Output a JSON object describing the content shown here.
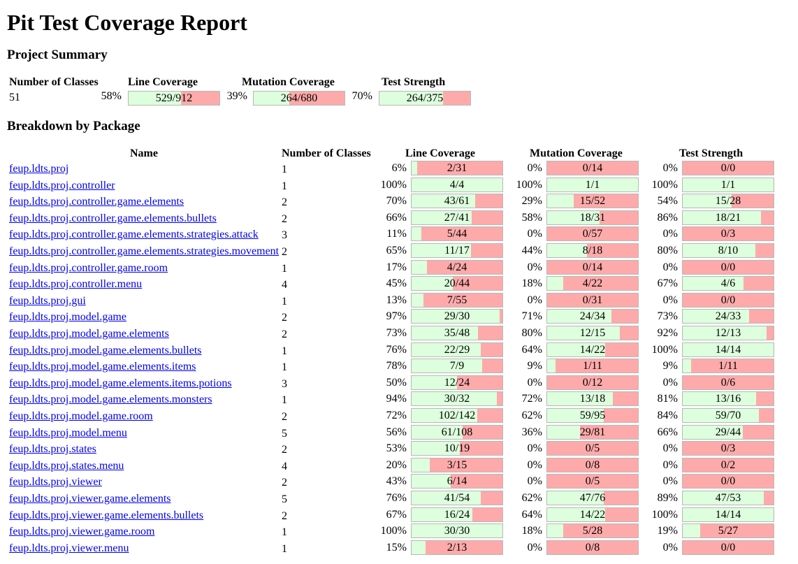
{
  "title": "Pit Test Coverage Report",
  "project_summary": {
    "heading": "Project Summary",
    "headers": {
      "classes": "Number of Classes",
      "line": "Line Coverage",
      "mutation": "Mutation Coverage",
      "strength": "Test Strength"
    },
    "classes": "51",
    "line": {
      "pct": "58%",
      "text": "529/912",
      "fraction": 0.58
    },
    "mutation": {
      "pct": "39%",
      "text": "264/680",
      "fraction": 0.39
    },
    "strength": {
      "pct": "70%",
      "text": "264/375",
      "fraction": 0.7
    }
  },
  "breakdown": {
    "heading": "Breakdown by Package",
    "headers": {
      "name": "Name",
      "classes": "Number of Classes",
      "line": "Line Coverage",
      "mutation": "Mutation Coverage",
      "strength": "Test Strength"
    },
    "packages": [
      {
        "name": "feup.ldts.proj",
        "classes": "1",
        "line": {
          "pct": "6%",
          "text": "2/31",
          "fraction": 0.06
        },
        "mutation": {
          "pct": "0%",
          "text": "0/14",
          "fraction": 0
        },
        "strength": {
          "pct": "0%",
          "text": "0/0",
          "fraction": 0
        }
      },
      {
        "name": "feup.ldts.proj.controller",
        "classes": "1",
        "line": {
          "pct": "100%",
          "text": "4/4",
          "fraction": 1
        },
        "mutation": {
          "pct": "100%",
          "text": "1/1",
          "fraction": 1
        },
        "strength": {
          "pct": "100%",
          "text": "1/1",
          "fraction": 1
        }
      },
      {
        "name": "feup.ldts.proj.controller.game.elements",
        "classes": "2",
        "line": {
          "pct": "70%",
          "text": "43/61",
          "fraction": 0.7
        },
        "mutation": {
          "pct": "29%",
          "text": "15/52",
          "fraction": 0.29
        },
        "strength": {
          "pct": "54%",
          "text": "15/28",
          "fraction": 0.54
        }
      },
      {
        "name": "feup.ldts.proj.controller.game.elements.bullets",
        "classes": "2",
        "line": {
          "pct": "66%",
          "text": "27/41",
          "fraction": 0.66
        },
        "mutation": {
          "pct": "58%",
          "text": "18/31",
          "fraction": 0.58
        },
        "strength": {
          "pct": "86%",
          "text": "18/21",
          "fraction": 0.86
        }
      },
      {
        "name": "feup.ldts.proj.controller.game.elements.strategies.attack",
        "classes": "3",
        "line": {
          "pct": "11%",
          "text": "5/44",
          "fraction": 0.11
        },
        "mutation": {
          "pct": "0%",
          "text": "0/57",
          "fraction": 0
        },
        "strength": {
          "pct": "0%",
          "text": "0/3",
          "fraction": 0
        }
      },
      {
        "name": "feup.ldts.proj.controller.game.elements.strategies.movement",
        "classes": "2",
        "line": {
          "pct": "65%",
          "text": "11/17",
          "fraction": 0.65
        },
        "mutation": {
          "pct": "44%",
          "text": "8/18",
          "fraction": 0.44
        },
        "strength": {
          "pct": "80%",
          "text": "8/10",
          "fraction": 0.8
        }
      },
      {
        "name": "feup.ldts.proj.controller.game.room",
        "classes": "1",
        "line": {
          "pct": "17%",
          "text": "4/24",
          "fraction": 0.17
        },
        "mutation": {
          "pct": "0%",
          "text": "0/14",
          "fraction": 0
        },
        "strength": {
          "pct": "0%",
          "text": "0/0",
          "fraction": 0
        }
      },
      {
        "name": "feup.ldts.proj.controller.menu",
        "classes": "4",
        "line": {
          "pct": "45%",
          "text": "20/44",
          "fraction": 0.45
        },
        "mutation": {
          "pct": "18%",
          "text": "4/22",
          "fraction": 0.18
        },
        "strength": {
          "pct": "67%",
          "text": "4/6",
          "fraction": 0.67
        }
      },
      {
        "name": "feup.ldts.proj.gui",
        "classes": "1",
        "line": {
          "pct": "13%",
          "text": "7/55",
          "fraction": 0.13
        },
        "mutation": {
          "pct": "0%",
          "text": "0/31",
          "fraction": 0
        },
        "strength": {
          "pct": "0%",
          "text": "0/0",
          "fraction": 0
        }
      },
      {
        "name": "feup.ldts.proj.model.game",
        "classes": "2",
        "line": {
          "pct": "97%",
          "text": "29/30",
          "fraction": 0.97
        },
        "mutation": {
          "pct": "71%",
          "text": "24/34",
          "fraction": 0.71
        },
        "strength": {
          "pct": "73%",
          "text": "24/33",
          "fraction": 0.73
        }
      },
      {
        "name": "feup.ldts.proj.model.game.elements",
        "classes": "2",
        "line": {
          "pct": "73%",
          "text": "35/48",
          "fraction": 0.73
        },
        "mutation": {
          "pct": "80%",
          "text": "12/15",
          "fraction": 0.8
        },
        "strength": {
          "pct": "92%",
          "text": "12/13",
          "fraction": 0.92
        }
      },
      {
        "name": "feup.ldts.proj.model.game.elements.bullets",
        "classes": "1",
        "line": {
          "pct": "76%",
          "text": "22/29",
          "fraction": 0.76
        },
        "mutation": {
          "pct": "64%",
          "text": "14/22",
          "fraction": 0.64
        },
        "strength": {
          "pct": "100%",
          "text": "14/14",
          "fraction": 1
        }
      },
      {
        "name": "feup.ldts.proj.model.game.elements.items",
        "classes": "1",
        "line": {
          "pct": "78%",
          "text": "7/9",
          "fraction": 0.78
        },
        "mutation": {
          "pct": "9%",
          "text": "1/11",
          "fraction": 0.09
        },
        "strength": {
          "pct": "9%",
          "text": "1/11",
          "fraction": 0.09
        }
      },
      {
        "name": "feup.ldts.proj.model.game.elements.items.potions",
        "classes": "3",
        "line": {
          "pct": "50%",
          "text": "12/24",
          "fraction": 0.5
        },
        "mutation": {
          "pct": "0%",
          "text": "0/12",
          "fraction": 0
        },
        "strength": {
          "pct": "0%",
          "text": "0/6",
          "fraction": 0
        }
      },
      {
        "name": "feup.ldts.proj.model.game.elements.monsters",
        "classes": "1",
        "line": {
          "pct": "94%",
          "text": "30/32",
          "fraction": 0.94
        },
        "mutation": {
          "pct": "72%",
          "text": "13/18",
          "fraction": 0.72
        },
        "strength": {
          "pct": "81%",
          "text": "13/16",
          "fraction": 0.81
        }
      },
      {
        "name": "feup.ldts.proj.model.game.room",
        "classes": "2",
        "line": {
          "pct": "72%",
          "text": "102/142",
          "fraction": 0.72
        },
        "mutation": {
          "pct": "62%",
          "text": "59/95",
          "fraction": 0.62
        },
        "strength": {
          "pct": "84%",
          "text": "59/70",
          "fraction": 0.84
        }
      },
      {
        "name": "feup.ldts.proj.model.menu",
        "classes": "5",
        "line": {
          "pct": "56%",
          "text": "61/108",
          "fraction": 0.56
        },
        "mutation": {
          "pct": "36%",
          "text": "29/81",
          "fraction": 0.36
        },
        "strength": {
          "pct": "66%",
          "text": "29/44",
          "fraction": 0.66
        }
      },
      {
        "name": "feup.ldts.proj.states",
        "classes": "2",
        "line": {
          "pct": "53%",
          "text": "10/19",
          "fraction": 0.53
        },
        "mutation": {
          "pct": "0%",
          "text": "0/5",
          "fraction": 0
        },
        "strength": {
          "pct": "0%",
          "text": "0/3",
          "fraction": 0
        }
      },
      {
        "name": "feup.ldts.proj.states.menu",
        "classes": "4",
        "line": {
          "pct": "20%",
          "text": "3/15",
          "fraction": 0.2
        },
        "mutation": {
          "pct": "0%",
          "text": "0/8",
          "fraction": 0
        },
        "strength": {
          "pct": "0%",
          "text": "0/2",
          "fraction": 0
        }
      },
      {
        "name": "feup.ldts.proj.viewer",
        "classes": "2",
        "line": {
          "pct": "43%",
          "text": "6/14",
          "fraction": 0.43
        },
        "mutation": {
          "pct": "0%",
          "text": "0/5",
          "fraction": 0
        },
        "strength": {
          "pct": "0%",
          "text": "0/0",
          "fraction": 0
        }
      },
      {
        "name": "feup.ldts.proj.viewer.game.elements",
        "classes": "5",
        "line": {
          "pct": "76%",
          "text": "41/54",
          "fraction": 0.76
        },
        "mutation": {
          "pct": "62%",
          "text": "47/76",
          "fraction": 0.62
        },
        "strength": {
          "pct": "89%",
          "text": "47/53",
          "fraction": 0.89
        }
      },
      {
        "name": "feup.ldts.proj.viewer.game.elements.bullets",
        "classes": "2",
        "line": {
          "pct": "67%",
          "text": "16/24",
          "fraction": 0.67
        },
        "mutation": {
          "pct": "64%",
          "text": "14/22",
          "fraction": 0.64
        },
        "strength": {
          "pct": "100%",
          "text": "14/14",
          "fraction": 1
        }
      },
      {
        "name": "feup.ldts.proj.viewer.game.room",
        "classes": "1",
        "line": {
          "pct": "100%",
          "text": "30/30",
          "fraction": 1
        },
        "mutation": {
          "pct": "18%",
          "text": "5/28",
          "fraction": 0.18
        },
        "strength": {
          "pct": "19%",
          "text": "5/27",
          "fraction": 0.19
        }
      },
      {
        "name": "feup.ldts.proj.viewer.menu",
        "classes": "1",
        "line": {
          "pct": "15%",
          "text": "2/13",
          "fraction": 0.15
        },
        "mutation": {
          "pct": "0%",
          "text": "0/8",
          "fraction": 0
        },
        "strength": {
          "pct": "0%",
          "text": "0/0",
          "fraction": 0
        }
      }
    ]
  },
  "colors": {
    "covered": "#ddffdd",
    "uncovered": "#ffaaaa",
    "link": "#0000ee"
  }
}
